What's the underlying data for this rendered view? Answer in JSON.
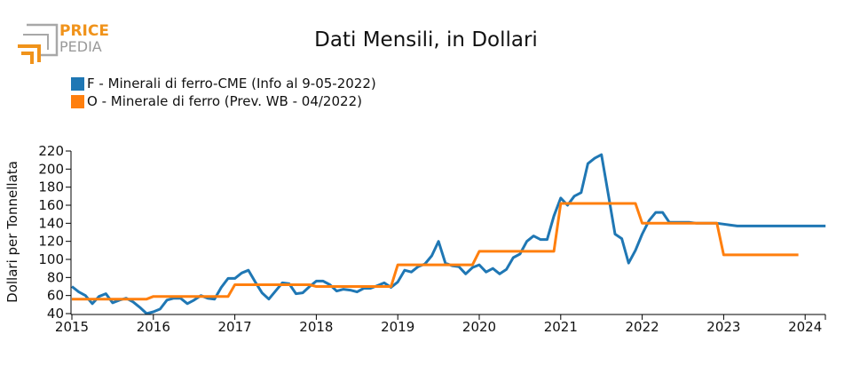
{
  "logo": {
    "line1": "PRICE",
    "line2": "PEDIA"
  },
  "chart_data": {
    "type": "line",
    "title": "Dati Mensili, in Dollari",
    "xlabel": "",
    "ylabel": "Dollari per Tonnellata",
    "ylim": [
      40,
      220
    ],
    "yticks": [
      40,
      60,
      80,
      100,
      120,
      140,
      160,
      180,
      200,
      220
    ],
    "xticks": [
      "2015",
      "2016",
      "2017",
      "2018",
      "2019",
      "2020",
      "2021",
      "2022",
      "2023",
      "2024"
    ],
    "xrange": [
      "2015-01",
      "2024-04"
    ],
    "grid": false,
    "legend_position": "top-left",
    "series": [
      {
        "name": "F - Minerali di ferro-CME (Info al 9-05-2022)",
        "color": "#1f77b4",
        "start": "2015-01",
        "values": [
          70,
          64,
          60,
          51,
          59,
          62,
          52,
          55,
          57,
          53,
          47,
          40,
          42,
          45,
          55,
          57,
          57,
          51,
          55,
          60,
          57,
          56,
          69,
          79,
          79,
          85,
          88,
          75,
          63,
          56,
          65,
          74,
          73,
          62,
          63,
          70,
          76,
          76,
          72,
          65,
          67,
          66,
          64,
          68,
          68,
          71,
          74,
          69,
          75,
          88,
          86,
          92,
          95,
          104,
          120,
          96,
          93,
          92,
          84,
          91,
          94,
          86,
          90,
          84,
          89,
          102,
          106,
          120,
          126,
          122,
          122,
          148,
          168,
          160,
          170,
          174,
          206,
          212,
          216,
          172,
          128,
          123,
          96,
          110,
          128,
          143,
          152,
          152,
          141,
          141,
          141,
          141,
          140,
          140,
          140,
          140,
          139,
          138,
          137,
          137,
          137,
          137,
          137,
          137,
          137,
          137,
          137,
          137,
          137,
          137,
          137,
          137
        ]
      },
      {
        "name": "O - Minerale di ferro (Prev. WB - 04/2022)",
        "color": "#ff7f0e",
        "start": "2015-01",
        "values": [
          56,
          56,
          56,
          56,
          56,
          56,
          56,
          56,
          56,
          56,
          56,
          56,
          59,
          59,
          59,
          59,
          59,
          59,
          59,
          59,
          59,
          59,
          59,
          59,
          72,
          72,
          72,
          72,
          72,
          72,
          72,
          72,
          72,
          72,
          72,
          72,
          70,
          70,
          70,
          70,
          70,
          70,
          70,
          70,
          70,
          70,
          70,
          70,
          94,
          94,
          94,
          94,
          94,
          94,
          94,
          94,
          94,
          94,
          94,
          94,
          109,
          109,
          109,
          109,
          109,
          109,
          109,
          109,
          109,
          109,
          109,
          109,
          162,
          162,
          162,
          162,
          162,
          162,
          162,
          162,
          162,
          162,
          162,
          162,
          140,
          140,
          140,
          140,
          140,
          140,
          140,
          140,
          140,
          140,
          140,
          140,
          105,
          105,
          105,
          105,
          105,
          105,
          105,
          105,
          105,
          105,
          105,
          105
        ]
      }
    ]
  }
}
